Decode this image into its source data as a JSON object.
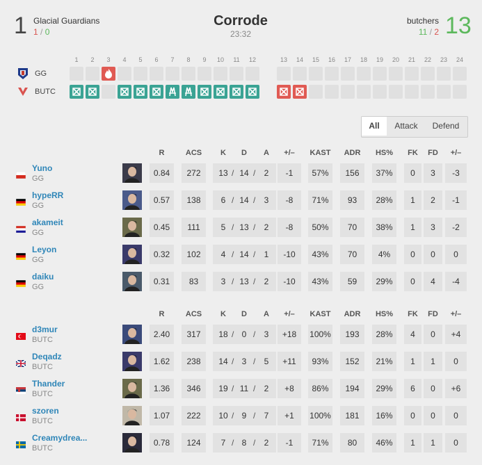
{
  "header": {
    "team1": {
      "score": "1",
      "name": "Glacial Guardians",
      "half1": "1",
      "half2": "0"
    },
    "map": "Corrode",
    "duration": "23:32",
    "team2": {
      "score": "13",
      "name": "butchers",
      "half1": "11",
      "half2": "2"
    }
  },
  "rounds": {
    "numbers": [
      "1",
      "2",
      "3",
      "4",
      "5",
      "6",
      "7",
      "8",
      "9",
      "10",
      "11",
      "12",
      "13",
      "14",
      "15",
      "16",
      "17",
      "18",
      "19",
      "20",
      "21",
      "22",
      "23",
      "24"
    ],
    "teams": [
      "GG",
      "BUTC"
    ]
  },
  "tabs": [
    "All",
    "Attack",
    "Defend"
  ],
  "columns": [
    "R",
    "ACS",
    "K",
    "D",
    "A",
    "+/–",
    "KAST",
    "ADR",
    "HS%",
    "FK",
    "FD",
    "+/–"
  ],
  "teams": [
    {
      "players": [
        {
          "name": "Yuno",
          "team": "GG",
          "stats": [
            "0.84",
            "272",
            "13",
            "14",
            "2",
            "-1",
            "57%",
            "156",
            "37%",
            "0",
            "3",
            "-3"
          ]
        },
        {
          "name": "hypeRR",
          "team": "GG",
          "stats": [
            "0.57",
            "138",
            "6",
            "14",
            "3",
            "-8",
            "71%",
            "93",
            "28%",
            "1",
            "2",
            "-1"
          ]
        },
        {
          "name": "akameit",
          "team": "GG",
          "stats": [
            "0.45",
            "111",
            "5",
            "13",
            "2",
            "-8",
            "50%",
            "70",
            "38%",
            "1",
            "3",
            "-2"
          ]
        },
        {
          "name": "Leyon",
          "team": "GG",
          "stats": [
            "0.32",
            "102",
            "4",
            "14",
            "1",
            "-10",
            "43%",
            "70",
            "4%",
            "0",
            "0",
            "0"
          ]
        },
        {
          "name": "daiku",
          "team": "GG",
          "stats": [
            "0.31",
            "83",
            "3",
            "13",
            "2",
            "-10",
            "43%",
            "59",
            "29%",
            "0",
            "4",
            "-4"
          ]
        }
      ]
    },
    {
      "players": [
        {
          "name": "d3mur",
          "team": "BUTC",
          "stats": [
            "2.40",
            "317",
            "18",
            "0",
            "3",
            "+18",
            "100%",
            "193",
            "28%",
            "4",
            "0",
            "+4"
          ]
        },
        {
          "name": "Deqadz",
          "team": "BUTC",
          "stats": [
            "1.62",
            "238",
            "14",
            "3",
            "5",
            "+11",
            "93%",
            "152",
            "21%",
            "1",
            "1",
            "0"
          ]
        },
        {
          "name": "Thander",
          "team": "BUTC",
          "stats": [
            "1.36",
            "346",
            "19",
            "11",
            "2",
            "+8",
            "86%",
            "194",
            "29%",
            "6",
            "0",
            "+6"
          ]
        },
        {
          "name": "szoren",
          "team": "BUTC",
          "stats": [
            "1.07",
            "222",
            "10",
            "9",
            "7",
            "+1",
            "100%",
            "181",
            "16%",
            "0",
            "0",
            "0"
          ]
        },
        {
          "name": "Creamydrea...",
          "team": "BUTC",
          "stats": [
            "0.78",
            "124",
            "7",
            "8",
            "2",
            "-1",
            "71%",
            "80",
            "46%",
            "1",
            "1",
            "0"
          ]
        }
      ]
    }
  ]
}
